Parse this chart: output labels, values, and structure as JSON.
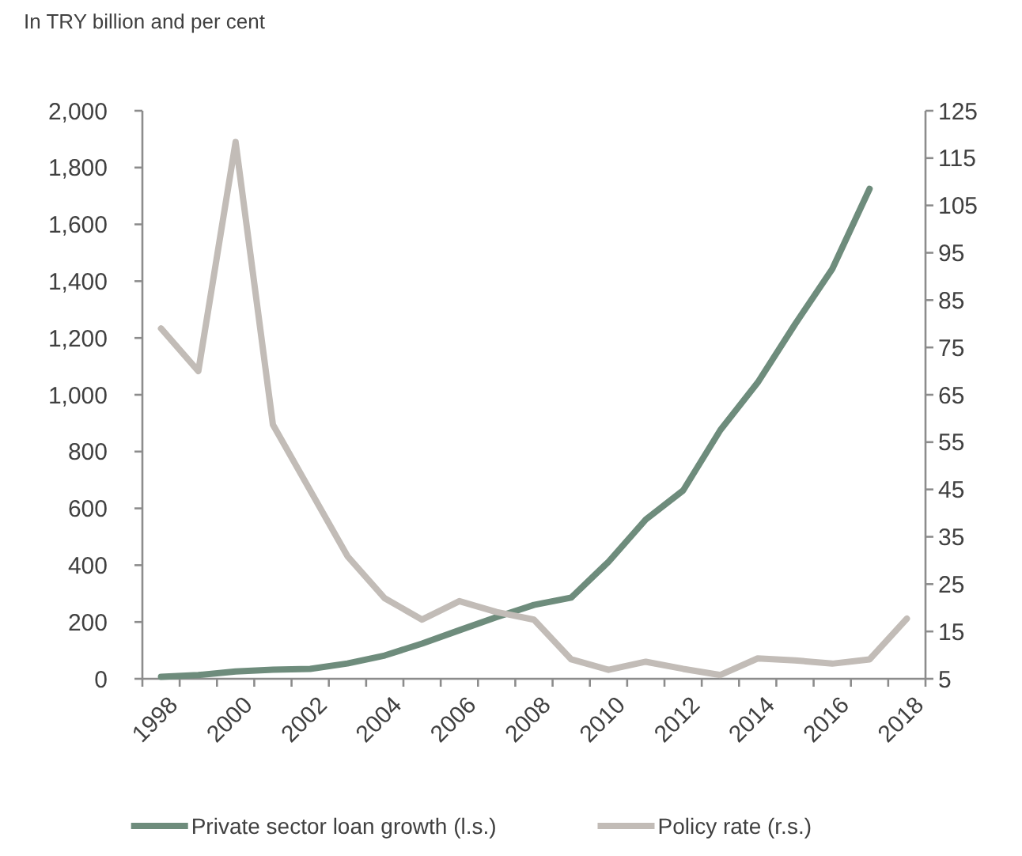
{
  "chart_data": {
    "type": "line",
    "subtitle": "In TRY billion and per cent",
    "categories": [
      "1998",
      null,
      "2000",
      null,
      "2002",
      null,
      "2004",
      null,
      "2006",
      null,
      "2008",
      null,
      "2010",
      null,
      "2012",
      null,
      "2014",
      null,
      "2016",
      null,
      "2018"
    ],
    "series": [
      {
        "name": "Private sector loan growth (l.s.)",
        "color": "#6e8c7c",
        "values": [
          7,
          13,
          26,
          32,
          35,
          54,
          82,
          124,
          171,
          217,
          260,
          286,
          412,
          561,
          663,
          876,
          1043,
          1248,
          1443,
          1725,
          null
        ]
      },
      {
        "name": "Policy rate (r.s.)",
        "color": "#c2bcb7",
        "axis": "y2",
        "values": [
          79,
          70,
          118.4,
          58.7,
          44.8,
          30.9,
          22,
          17.5,
          21.4,
          19.1,
          17.5,
          9.1,
          6.9,
          8.6,
          7.1,
          5.8,
          9.3,
          8.9,
          8.2,
          9.1,
          17.7
        ]
      }
    ],
    "ylim": [
      0,
      2000
    ],
    "yticks": [
      0,
      200,
      400,
      600,
      800,
      {
        "value": 1000,
        "label": "1,000"
      },
      {
        "value": 1200,
        "label": "1,200"
      },
      {
        "value": 1400,
        "label": "1,400"
      },
      {
        "value": 1600,
        "label": "1,600"
      },
      {
        "value": 1800,
        "label": "1,800"
      },
      {
        "value": 2000,
        "label": "2,000"
      }
    ],
    "y2lim": [
      5,
      125
    ],
    "y2ticks": [
      5,
      15,
      25,
      35,
      45,
      55,
      65,
      75,
      85,
      95,
      105,
      115,
      125
    ],
    "grid": false,
    "legend": "bottom",
    "marker": "none",
    "line_style": "solid"
  }
}
